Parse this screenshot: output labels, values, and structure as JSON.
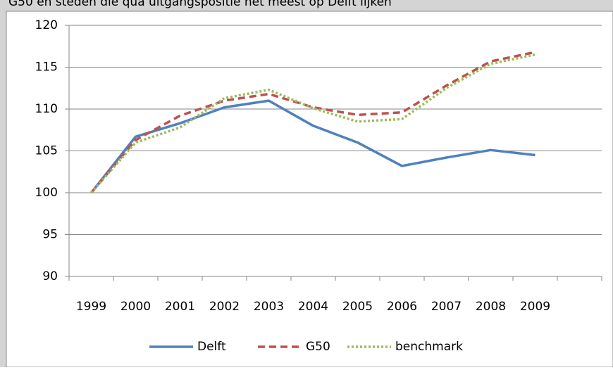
{
  "chart_data": {
    "type": "line",
    "title": "G50 en steden die qua uitgangspositie het meest op Delft lijken",
    "categories": [
      "1999",
      "2000",
      "2001",
      "2002",
      "2003",
      "2004",
      "2005",
      "2006",
      "2007",
      "2008",
      "2009",
      null
    ],
    "series": [
      {
        "name": "Delft",
        "color": "#4f81bd",
        "dash": "solid",
        "values": [
          100,
          106.7,
          108.3,
          110.2,
          111,
          108,
          106,
          103.2,
          104.2,
          105.1,
          104.5,
          null
        ]
      },
      {
        "name": "G50",
        "color": "#c0504d",
        "dash": "dashed",
        "values": [
          100,
          106.3,
          109.2,
          111,
          111.8,
          110.2,
          109.3,
          109.6,
          112.8,
          115.7,
          116.8,
          null
        ]
      },
      {
        "name": "benchmark",
        "color": "#9bbb59",
        "dash": "dotted",
        "values": [
          100,
          106,
          107.8,
          111.3,
          112.3,
          110.1,
          108.5,
          108.8,
          112.5,
          115.4,
          116.5,
          null
        ]
      }
    ],
    "ylim": [
      90,
      120
    ],
    "yticks": [
      90,
      95,
      100,
      105,
      110,
      115,
      120
    ],
    "grid": true,
    "legend": "bottom"
  }
}
